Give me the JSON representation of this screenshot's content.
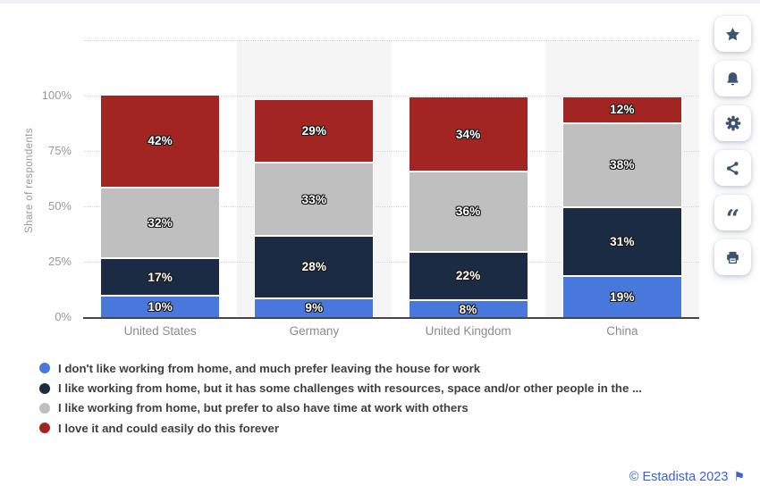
{
  "chart_data": {
    "type": "bar",
    "stacked": true,
    "title": "",
    "xlabel": "",
    "ylabel": "Share of respondents",
    "categories": [
      "United States",
      "Germany",
      "United Kingdom",
      "China"
    ],
    "series": [
      {
        "name": "I don't like working from home, and much prefer leaving the house for work",
        "color": "#4878db",
        "values": [
          10,
          9,
          8,
          19
        ]
      },
      {
        "name": "I like working from home, but it has some challenges with resources, space and/or other people in the ...",
        "color": "#1b2b44",
        "values": [
          17,
          28,
          22,
          31
        ]
      },
      {
        "name": "I like working from home, but prefer to also have time at work with others",
        "color": "#bfbfbf",
        "values": [
          32,
          33,
          36,
          38
        ]
      },
      {
        "name": "I love it and could easily do this forever",
        "color": "#a22522",
        "values": [
          42,
          29,
          34,
          12
        ]
      }
    ],
    "ylim": [
      0,
      100
    ],
    "yticks": [
      0,
      25,
      50,
      75,
      100
    ],
    "ytick_labels": [
      "0%",
      "25%",
      "50%",
      "75%",
      "100%"
    ],
    "value_suffix": "%",
    "grid": "dotted horizontal",
    "band_color": "#f5f5f6",
    "legend_position": "bottom"
  },
  "sidebar": {
    "icon_color": "#3e5370",
    "buttons": [
      {
        "id": "favorite",
        "icon": "star-icon"
      },
      {
        "id": "notifications",
        "icon": "bell-icon"
      },
      {
        "id": "settings",
        "icon": "gear-icon"
      },
      {
        "id": "share",
        "icon": "share-icon"
      },
      {
        "id": "cite",
        "icon": "quote-icon",
        "glyph": "“"
      },
      {
        "id": "print",
        "icon": "printer-icon"
      }
    ]
  },
  "footer": {
    "copyright": "© Estadista 2023",
    "flag_glyph": "⚑",
    "link_color": "#3b61d9"
  }
}
